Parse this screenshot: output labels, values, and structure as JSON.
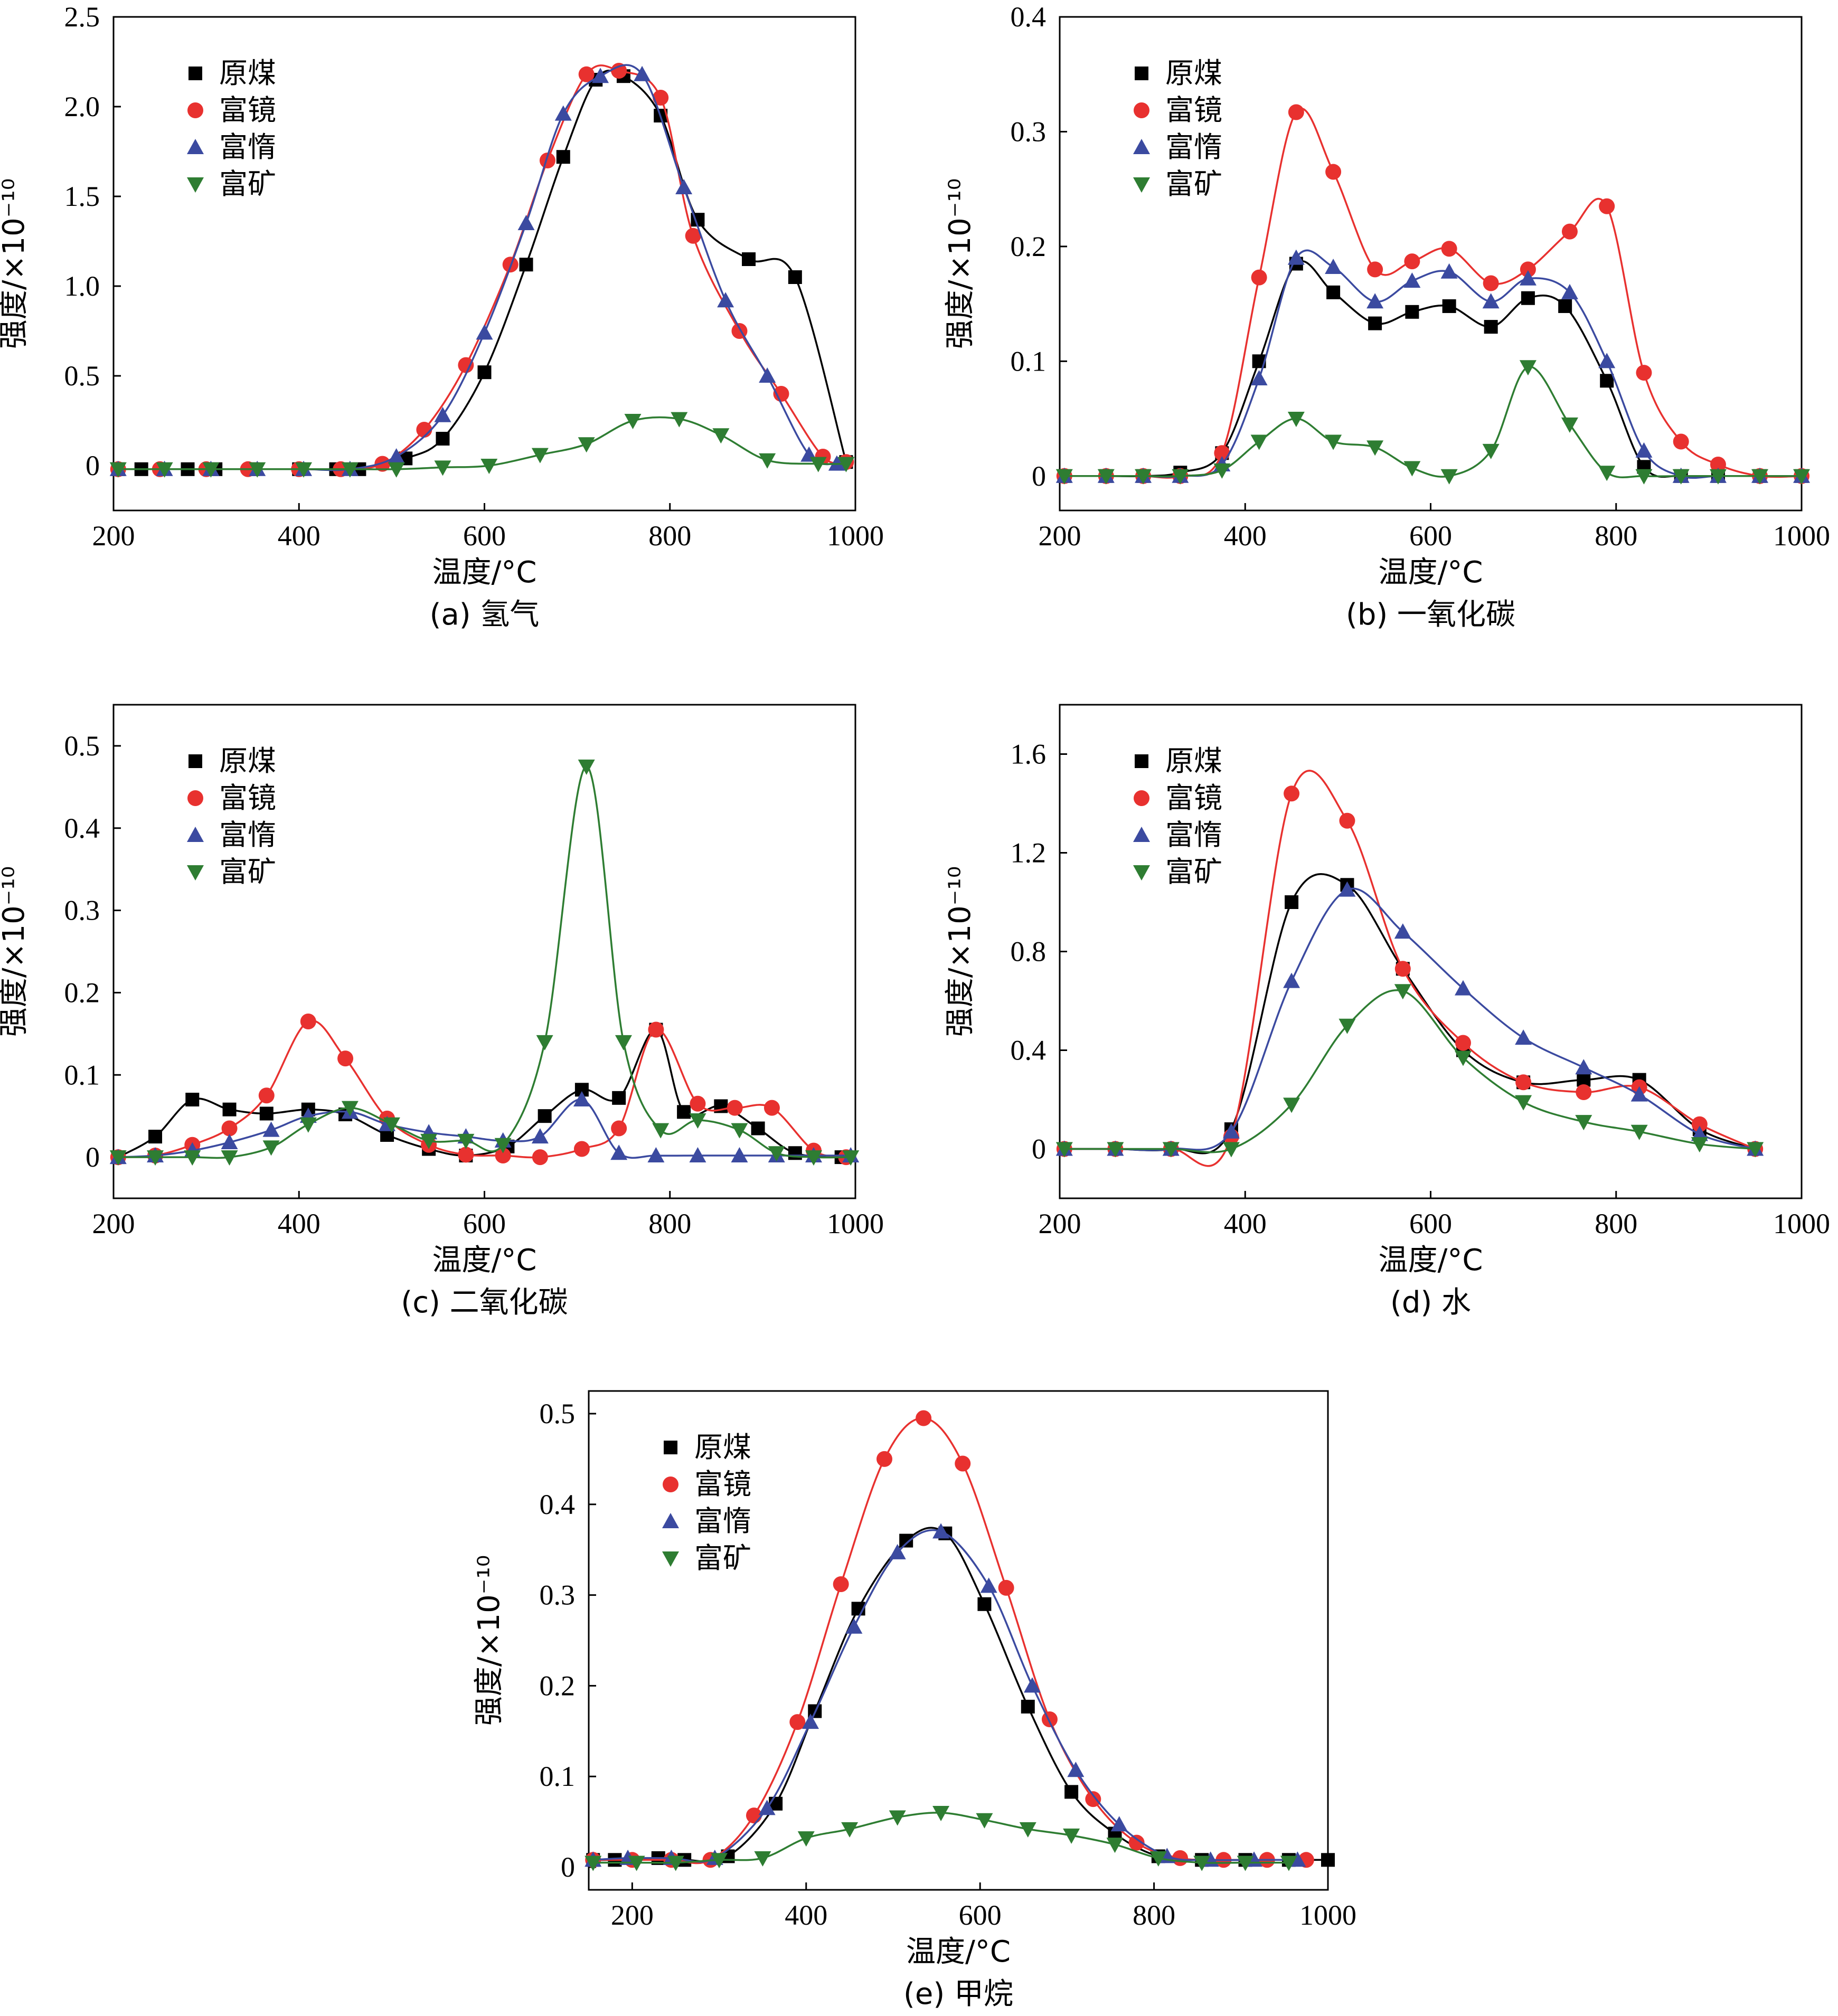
{
  "chart_data": [
    {
      "id": "a",
      "type": "line",
      "caption": "(a) 氢气",
      "xlabel": "温度/°C",
      "ylabel": "强度/×10⁻¹⁰",
      "xlim": [
        200,
        1000
      ],
      "ylim": [
        -0.25,
        2.5
      ],
      "xticks": [
        200,
        400,
        600,
        800,
        1000
      ],
      "yticks": [
        0,
        0.5,
        1.0,
        1.5,
        2.0,
        2.5
      ],
      "ytick_labels": [
        "0",
        "0.5",
        "1.0",
        "1.5",
        "2.0",
        "2.5"
      ],
      "legend": [
        "原煤",
        "富镜",
        "富惰",
        "富矿"
      ],
      "series": [
        {
          "name": "原煤",
          "color": "#000000",
          "marker": "square",
          "x": [
            205,
            230,
            280,
            310,
            350,
            400,
            440,
            465,
            515,
            555,
            600,
            645,
            685,
            720,
            750,
            790,
            830,
            885,
            935,
            990
          ],
          "y": [
            -0.02,
            -0.02,
            -0.02,
            -0.02,
            -0.02,
            -0.02,
            -0.02,
            -0.02,
            0.04,
            0.15,
            0.52,
            1.12,
            1.72,
            2.15,
            2.17,
            1.95,
            1.37,
            1.15,
            1.05,
            0.02
          ]
        },
        {
          "name": "富镜",
          "color": "#e8312f",
          "marker": "circle",
          "x": [
            205,
            250,
            300,
            345,
            400,
            445,
            490,
            535,
            580,
            628,
            668,
            710,
            745,
            790,
            825,
            875,
            920,
            965,
            990
          ],
          "y": [
            -0.02,
            -0.02,
            -0.02,
            -0.02,
            -0.02,
            -0.02,
            0.01,
            0.2,
            0.56,
            1.12,
            1.7,
            2.18,
            2.2,
            2.05,
            1.28,
            0.75,
            0.4,
            0.05,
            0.02
          ]
        },
        {
          "name": "富惰",
          "color": "#3b4aa0",
          "marker": "triangle-up",
          "x": [
            205,
            255,
            305,
            355,
            405,
            455,
            505,
            555,
            600,
            645,
            685,
            725,
            770,
            815,
            860,
            905,
            950,
            980
          ],
          "y": [
            -0.02,
            -0.02,
            -0.02,
            -0.02,
            -0.02,
            -0.02,
            0.05,
            0.28,
            0.74,
            1.35,
            1.96,
            2.17,
            2.18,
            1.55,
            0.92,
            0.5,
            0.06,
            0.01
          ]
        },
        {
          "name": "富矿",
          "color": "#2e7d32",
          "marker": "triangle-down",
          "x": [
            205,
            255,
            305,
            355,
            405,
            455,
            505,
            555,
            605,
            660,
            710,
            760,
            810,
            855,
            905,
            960,
            990
          ],
          "y": [
            -0.02,
            -0.02,
            -0.02,
            -0.02,
            -0.02,
            -0.02,
            -0.02,
            -0.01,
            0.0,
            0.06,
            0.12,
            0.25,
            0.26,
            0.17,
            0.03,
            0.01,
            0.01
          ]
        }
      ]
    },
    {
      "id": "b",
      "type": "line",
      "caption": "(b) 一氧化碳",
      "xlabel": "温度/°C",
      "ylabel": "强度/×10⁻¹⁰",
      "xlim": [
        200,
        1000
      ],
      "ylim": [
        -0.03,
        0.4
      ],
      "xticks": [
        200,
        400,
        600,
        800,
        1000
      ],
      "yticks": [
        0,
        0.1,
        0.2,
        0.3,
        0.4
      ],
      "ytick_labels": [
        "0",
        "0.1",
        "0.2",
        "0.3",
        "0.4"
      ],
      "legend": [
        "原煤",
        "富镜",
        "富惰",
        "富矿"
      ],
      "series": [
        {
          "name": "原煤",
          "color": "#000000",
          "marker": "square",
          "x": [
            205,
            250,
            290,
            330,
            375,
            415,
            455,
            495,
            540,
            580,
            620,
            665,
            705,
            745,
            790,
            830,
            870,
            910,
            955,
            1000
          ],
          "y": [
            0,
            0,
            0,
            0.003,
            0.02,
            0.1,
            0.185,
            0.16,
            0.133,
            0.143,
            0.148,
            0.13,
            0.155,
            0.148,
            0.083,
            0.008,
            0,
            0,
            0,
            0
          ]
        },
        {
          "name": "富镜",
          "color": "#e8312f",
          "marker": "circle",
          "x": [
            205,
            250,
            290,
            330,
            375,
            415,
            455,
            495,
            540,
            580,
            620,
            665,
            705,
            750,
            790,
            830,
            870,
            910,
            955,
            1000
          ],
          "y": [
            0,
            0,
            0,
            0,
            0.02,
            0.173,
            0.317,
            0.265,
            0.18,
            0.187,
            0.198,
            0.168,
            0.18,
            0.213,
            0.235,
            0.09,
            0.03,
            0.01,
            0,
            0
          ]
        },
        {
          "name": "富惰",
          "color": "#3b4aa0",
          "marker": "triangle-up",
          "x": [
            205,
            250,
            290,
            330,
            375,
            415,
            455,
            495,
            540,
            580,
            620,
            665,
            705,
            750,
            790,
            830,
            870,
            910,
            955,
            1000
          ],
          "y": [
            0,
            0,
            0,
            0,
            0.01,
            0.085,
            0.19,
            0.182,
            0.152,
            0.17,
            0.178,
            0.152,
            0.172,
            0.16,
            0.1,
            0.022,
            0,
            0,
            0,
            0
          ]
        },
        {
          "name": "富矿",
          "color": "#2e7d32",
          "marker": "triangle-down",
          "x": [
            205,
            250,
            290,
            330,
            375,
            415,
            455,
            495,
            540,
            580,
            620,
            665,
            705,
            750,
            790,
            830,
            870,
            910,
            955,
            1000
          ],
          "y": [
            0,
            0,
            0,
            0,
            0.005,
            0.03,
            0.05,
            0.03,
            0.025,
            0.007,
            0,
            0.022,
            0.095,
            0.045,
            0.003,
            0,
            0,
            0,
            0,
            0
          ]
        }
      ]
    },
    {
      "id": "c",
      "type": "line",
      "caption": "(c) 二氧化碳",
      "xlabel": "温度/°C",
      "ylabel": "强度/×10⁻¹⁰",
      "xlim": [
        200,
        1000
      ],
      "ylim": [
        -0.05,
        0.55
      ],
      "xticks": [
        200,
        400,
        600,
        800,
        1000
      ],
      "yticks": [
        0,
        0.1,
        0.2,
        0.3,
        0.4,
        0.5
      ],
      "ytick_labels": [
        "0",
        "0.1",
        "0.2",
        "0.3",
        "0.4",
        "0.5"
      ],
      "legend": [
        "原煤",
        "富镜",
        "富惰",
        "富矿"
      ],
      "series": [
        {
          "name": "原煤",
          "color": "#000000",
          "marker": "square",
          "x": [
            205,
            245,
            285,
            325,
            365,
            410,
            450,
            495,
            540,
            580,
            625,
            665,
            705,
            745,
            785,
            815,
            855,
            895,
            935,
            985
          ],
          "y": [
            0,
            0.025,
            0.07,
            0.058,
            0.053,
            0.058,
            0.052,
            0.027,
            0.01,
            0.002,
            0.013,
            0.05,
            0.082,
            0.072,
            0.155,
            0.055,
            0.062,
            0.035,
            0.005,
            0
          ]
        },
        {
          "name": "富镜",
          "color": "#e8312f",
          "marker": "circle",
          "x": [
            205,
            245,
            285,
            325,
            365,
            410,
            450,
            495,
            540,
            580,
            620,
            660,
            705,
            745,
            785,
            830,
            870,
            910,
            955,
            990
          ],
          "y": [
            0,
            0.002,
            0.015,
            0.035,
            0.075,
            0.165,
            0.12,
            0.047,
            0.015,
            0.003,
            0.002,
            0,
            0.01,
            0.035,
            0.155,
            0.065,
            0.06,
            0.06,
            0.008,
            0
          ]
        },
        {
          "name": "富惰",
          "color": "#3b4aa0",
          "marker": "triangle-up",
          "x": [
            205,
            245,
            285,
            325,
            370,
            410,
            455,
            495,
            540,
            580,
            620,
            660,
            705,
            745,
            785,
            830,
            875,
            915,
            955,
            995
          ],
          "y": [
            0,
            0.002,
            0.008,
            0.018,
            0.033,
            0.05,
            0.055,
            0.04,
            0.03,
            0.025,
            0.02,
            0.025,
            0.07,
            0.005,
            0.002,
            0.002,
            0.002,
            0.002,
            0.002,
            0.002
          ]
        },
        {
          "name": "富矿",
          "color": "#2e7d32",
          "marker": "triangle-down",
          "x": [
            205,
            245,
            285,
            325,
            370,
            410,
            455,
            500,
            540,
            580,
            620,
            665,
            710,
            750,
            790,
            830,
            875,
            915,
            955,
            995
          ],
          "y": [
            0,
            0,
            0,
            0,
            0.012,
            0.04,
            0.06,
            0.04,
            0.02,
            0.02,
            0.015,
            0.14,
            0.475,
            0.14,
            0.033,
            0.045,
            0.033,
            0.005,
            0,
            0
          ]
        }
      ]
    },
    {
      "id": "d",
      "type": "line",
      "caption": "(d) 水",
      "xlabel": "温度/°C",
      "ylabel": "强度/×10⁻¹⁰",
      "xlim": [
        200,
        1000
      ],
      "ylim": [
        -0.2,
        1.8
      ],
      "xticks": [
        200,
        400,
        600,
        800,
        1000
      ],
      "yticks": [
        0,
        0.4,
        0.8,
        1.2,
        1.6
      ],
      "ytick_labels": [
        "0",
        "0.4",
        "0.8",
        "1.2",
        "1.6"
      ],
      "legend": [
        "原煤",
        "富镜",
        "富惰",
        "富矿"
      ],
      "series": [
        {
          "name": "原煤",
          "color": "#000000",
          "marker": "square",
          "x": [
            205,
            260,
            320,
            385,
            450,
            510,
            570,
            635,
            700,
            765,
            825,
            890,
            950
          ],
          "y": [
            0,
            0,
            0,
            0.08,
            1.0,
            1.07,
            0.73,
            0.4,
            0.27,
            0.28,
            0.28,
            0.08,
            0
          ]
        },
        {
          "name": "富镜",
          "color": "#e8312f",
          "marker": "circle",
          "x": [
            205,
            260,
            320,
            385,
            450,
            510,
            570,
            635,
            700,
            765,
            825,
            890,
            950
          ],
          "y": [
            0,
            0,
            0,
            0.05,
            1.44,
            1.33,
            0.73,
            0.43,
            0.27,
            0.23,
            0.25,
            0.1,
            0
          ]
        },
        {
          "name": "富惰",
          "color": "#3b4aa0",
          "marker": "triangle-up",
          "x": [
            205,
            260,
            320,
            385,
            450,
            510,
            570,
            635,
            700,
            765,
            825,
            890,
            950
          ],
          "y": [
            0,
            0,
            0,
            0.07,
            0.68,
            1.05,
            0.88,
            0.65,
            0.45,
            0.33,
            0.22,
            0.06,
            0
          ]
        },
        {
          "name": "富矿",
          "color": "#2e7d32",
          "marker": "triangle-down",
          "x": [
            205,
            260,
            320,
            385,
            450,
            510,
            570,
            635,
            700,
            765,
            825,
            890,
            950
          ],
          "y": [
            0,
            0,
            0,
            0,
            0.18,
            0.5,
            0.64,
            0.37,
            0.19,
            0.11,
            0.07,
            0.02,
            0
          ]
        }
      ]
    },
    {
      "id": "e",
      "type": "line",
      "caption": "(e) 甲烷",
      "xlabel": "温度/°C",
      "ylabel": "强度/×10⁻¹⁰",
      "xlim": [
        150,
        1000
      ],
      "ylim": [
        -0.025,
        0.525
      ],
      "xticks": [
        200,
        400,
        600,
        800,
        1000
      ],
      "yticks": [
        0,
        0.1,
        0.2,
        0.3,
        0.4,
        0.5
      ],
      "ytick_labels": [
        "0",
        "0.1",
        "0.2",
        "0.3",
        "0.4",
        "0.5"
      ],
      "legend": [
        "原煤",
        "富镜",
        "富惰",
        "富矿"
      ],
      "series": [
        {
          "name": "原煤",
          "color": "#000000",
          "marker": "square",
          "x": [
            155,
            180,
            230,
            260,
            310,
            365,
            410,
            460,
            515,
            560,
            605,
            655,
            705,
            755,
            805,
            855,
            905,
            955,
            1000
          ],
          "y": [
            0.008,
            0.008,
            0.01,
            0.008,
            0.012,
            0.07,
            0.172,
            0.285,
            0.36,
            0.368,
            0.29,
            0.177,
            0.083,
            0.037,
            0.012,
            0.008,
            0.008,
            0.008,
            0.008
          ]
        },
        {
          "name": "富镜",
          "color": "#e8312f",
          "marker": "circle",
          "x": [
            155,
            200,
            245,
            290,
            340,
            390,
            440,
            490,
            535,
            580,
            630,
            680,
            730,
            780,
            830,
            880,
            930,
            975
          ],
          "y": [
            0.008,
            0.008,
            0.008,
            0.008,
            0.057,
            0.16,
            0.312,
            0.45,
            0.495,
            0.445,
            0.308,
            0.163,
            0.075,
            0.027,
            0.01,
            0.008,
            0.008,
            0.008
          ]
        },
        {
          "name": "富惰",
          "color": "#3b4aa0",
          "marker": "triangle-up",
          "x": [
            155,
            195,
            245,
            295,
            355,
            405,
            455,
            505,
            555,
            610,
            660,
            710,
            760,
            815,
            865,
            915,
            965
          ],
          "y": [
            0.008,
            0.01,
            0.01,
            0.01,
            0.065,
            0.16,
            0.265,
            0.347,
            0.37,
            0.31,
            0.2,
            0.107,
            0.047,
            0.012,
            0.008,
            0.008,
            0.008
          ]
        },
        {
          "name": "富矿",
          "color": "#2e7d32",
          "marker": "triangle-down",
          "x": [
            155,
            205,
            250,
            300,
            350,
            400,
            450,
            505,
            555,
            605,
            655,
            705,
            755,
            805,
            855,
            905,
            955
          ],
          "y": [
            0.005,
            0.005,
            0.005,
            0.008,
            0.01,
            0.032,
            0.042,
            0.055,
            0.06,
            0.052,
            0.042,
            0.035,
            0.025,
            0.01,
            0.005,
            0.005,
            0.005
          ]
        }
      ]
    }
  ]
}
